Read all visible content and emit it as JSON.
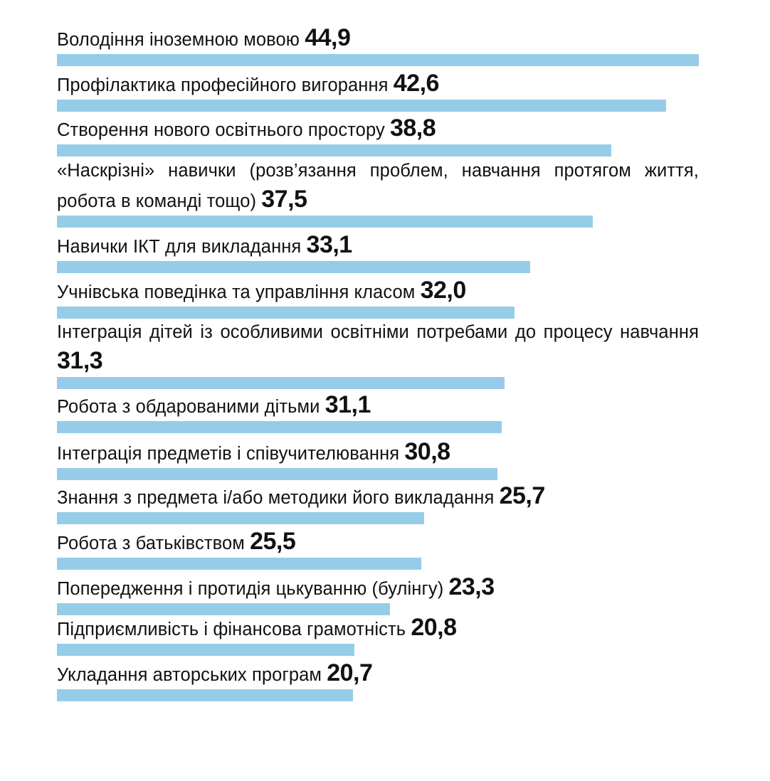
{
  "chart_data": {
    "type": "bar",
    "orientation": "horizontal",
    "categories": [
      "Володіння іноземною мовою",
      "Профілактика професійного вигорання",
      "Створення нового освітнього простору",
      "«Наскрізні» навички (розв’язання проблем, навчання протягом життя, робота в команді тощо)",
      "Навички ІКТ для викладання",
      "Учнівська поведінка та управління класом",
      "Інтеграція дітей із особливими освітніми потребами до процесу навчання",
      "Робота з обдарованими дітьми",
      "Інтеграція предметів і співучителювання",
      "Знання з предмета і/або методики його викладання",
      "Робота з батьківством",
      "Попередження і протидія цькуванню (булінгу)",
      "Підприємливість і фінансова грамотність",
      "Укладання авторських програм"
    ],
    "values": [
      44.9,
      42.6,
      38.8,
      37.5,
      33.1,
      32.0,
      31.3,
      31.1,
      30.8,
      25.7,
      25.5,
      23.3,
      20.8,
      20.7
    ],
    "value_labels": [
      "44,9",
      "42,6",
      "38,8",
      "37,5",
      "33,1",
      "32,0",
      "31,3",
      "31,1",
      "30,8",
      "25,7",
      "25,5",
      "23,3",
      "20,8",
      "20,7"
    ],
    "bar_color": "#97cce8",
    "grid": false,
    "legend": "none"
  }
}
